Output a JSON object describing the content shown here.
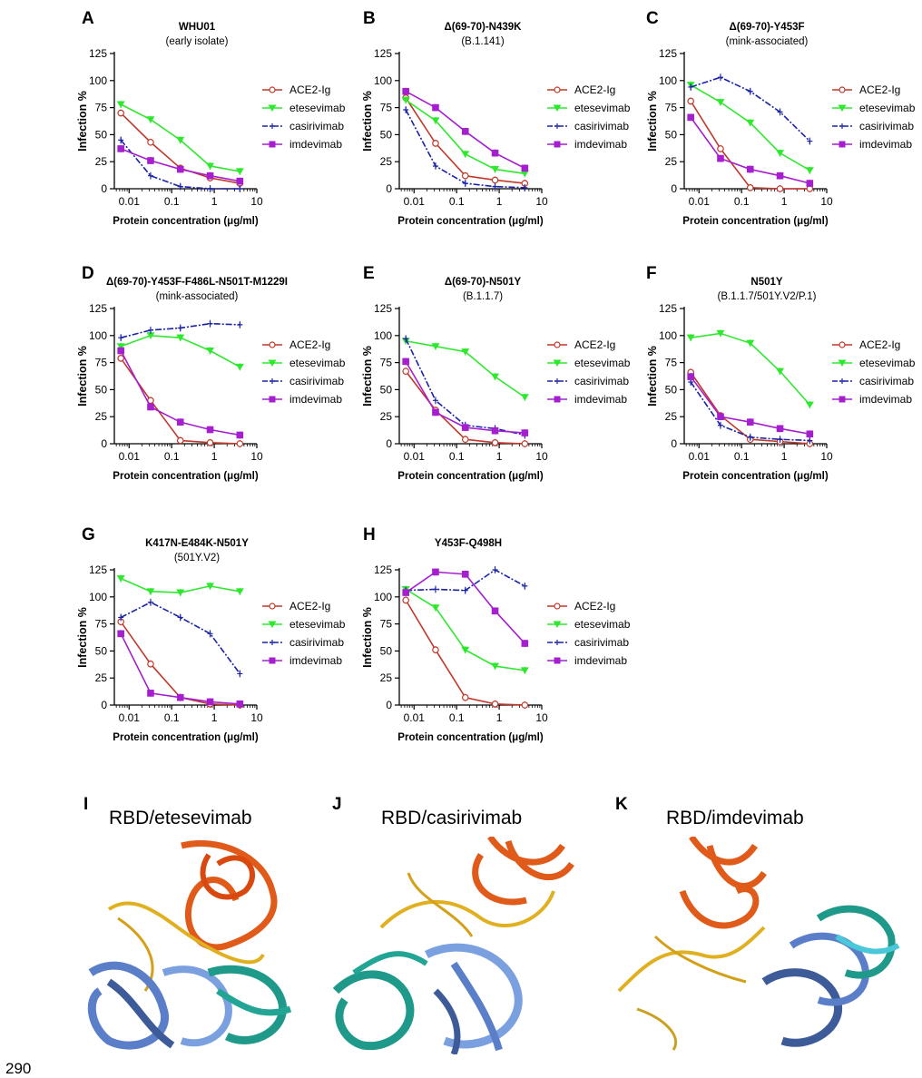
{
  "chart_data": [
    {
      "panel": "A",
      "type": "line",
      "title": "WHU01",
      "subtitle": "(early isolate)",
      "xlabel": "Protein concentration (μg/ml)",
      "ylabel": "Infection %",
      "xscale": "log",
      "xticks": [
        "0.01",
        "0.1",
        "1",
        "10"
      ],
      "yticks": [
        "0",
        "25",
        "50",
        "75",
        "100",
        "125"
      ],
      "ylim": [
        0,
        125
      ],
      "legend": "right",
      "x": [
        0.0064,
        0.032,
        0.16,
        0.8,
        4
      ],
      "series": [
        {
          "name": "ACE2-Ig",
          "values": [
            70,
            43,
            19,
            10,
            5
          ]
        },
        {
          "name": "etesevimab",
          "values": [
            78,
            64,
            45,
            21,
            16
          ]
        },
        {
          "name": "casirivimab",
          "values": [
            45,
            12,
            2,
            0,
            0
          ]
        },
        {
          "name": "imdevimab",
          "values": [
            37,
            26,
            18,
            12,
            7
          ]
        }
      ]
    },
    {
      "panel": "B",
      "type": "line",
      "title": "Δ(69-70)-N439K",
      "subtitle": "(B.1.141)",
      "xlabel": "Protein concentration (μg/ml)",
      "ylabel": "Infection %",
      "xscale": "log",
      "xticks": [
        "0.01",
        "0.1",
        "1",
        "10"
      ],
      "yticks": [
        "0",
        "25",
        "50",
        "75",
        "100",
        "125"
      ],
      "ylim": [
        0,
        125
      ],
      "legend": "right",
      "x": [
        0.0064,
        0.032,
        0.16,
        0.8,
        4
      ],
      "series": [
        {
          "name": "ACE2-Ig",
          "values": [
            84,
            42,
            12,
            8,
            5
          ]
        },
        {
          "name": "etesevimab",
          "values": [
            82,
            63,
            32,
            18,
            14
          ]
        },
        {
          "name": "casirivimab",
          "values": [
            73,
            21,
            5,
            2,
            1
          ]
        },
        {
          "name": "imdevimab",
          "values": [
            90,
            75,
            53,
            33,
            19
          ]
        }
      ]
    },
    {
      "panel": "C",
      "type": "line",
      "title": "Δ(69-70)-Y453F",
      "subtitle": "(mink-associated)",
      "xlabel": "Protein concentration (μg/ml)",
      "ylabel": "Infection %",
      "xscale": "log",
      "xticks": [
        "0.01",
        "0.1",
        "1",
        "10"
      ],
      "yticks": [
        "0",
        "25",
        "50",
        "75",
        "100",
        "125"
      ],
      "ylim": [
        0,
        125
      ],
      "legend": "right",
      "x": [
        0.0064,
        0.032,
        0.16,
        0.8,
        4
      ],
      "series": [
        {
          "name": "ACE2-Ig",
          "values": [
            81,
            37,
            1,
            0,
            0
          ]
        },
        {
          "name": "etesevimab",
          "values": [
            96,
            80,
            61,
            33,
            17
          ]
        },
        {
          "name": "casirivimab",
          "values": [
            94,
            103,
            90,
            71,
            44
          ]
        },
        {
          "name": "imdevimab",
          "values": [
            66,
            28,
            18,
            12,
            5
          ]
        }
      ]
    },
    {
      "panel": "D",
      "type": "line",
      "title": "Δ(69-70)-Y453F-F486L-N501T-M1229I",
      "subtitle": "(mink-associated)",
      "xlabel": "Protein concentration (μg/ml)",
      "ylabel": "Infection %",
      "xscale": "log",
      "xticks": [
        "0.01",
        "0.1",
        "1",
        "10"
      ],
      "yticks": [
        "0",
        "25",
        "50",
        "75",
        "100",
        "125"
      ],
      "ylim": [
        0,
        125
      ],
      "legend": "right",
      "x": [
        0.0064,
        0.032,
        0.16,
        0.8,
        4
      ],
      "series": [
        {
          "name": "ACE2-Ig",
          "values": [
            79,
            40,
            3,
            1,
            0
          ]
        },
        {
          "name": "etesevimab",
          "values": [
            90,
            100,
            98,
            86,
            71
          ]
        },
        {
          "name": "casirivimab",
          "values": [
            98,
            105,
            107,
            111,
            110
          ]
        },
        {
          "name": "imdevimab",
          "values": [
            86,
            34,
            20,
            13,
            8
          ]
        }
      ]
    },
    {
      "panel": "E",
      "type": "line",
      "title": "Δ(69-70)-N501Y",
      "subtitle": "(B.1.1.7)",
      "xlabel": "Protein concentration (μg/ml)",
      "ylabel": "Infection %",
      "xscale": "log",
      "xticks": [
        "0.01",
        "0.1",
        "1",
        "10"
      ],
      "yticks": [
        "0",
        "25",
        "50",
        "75",
        "100",
        "125"
      ],
      "ylim": [
        0,
        125
      ],
      "legend": "right",
      "x": [
        0.0064,
        0.032,
        0.16,
        0.8,
        4
      ],
      "series": [
        {
          "name": "ACE2-Ig",
          "values": [
            67,
            31,
            4,
            1,
            0
          ]
        },
        {
          "name": "etesevimab",
          "values": [
            95,
            90,
            85,
            62,
            43
          ]
        },
        {
          "name": "casirivimab",
          "values": [
            97,
            40,
            17,
            14,
            8
          ]
        },
        {
          "name": "imdevimab",
          "values": [
            76,
            29,
            15,
            12,
            10
          ]
        }
      ]
    },
    {
      "panel": "F",
      "type": "line",
      "title": "N501Y",
      "subtitle": "(B.1.1.7/501Y.V2/P.1)",
      "xlabel": "Protein concentration (μg/ml)",
      "ylabel": "Infection %",
      "xscale": "log",
      "xticks": [
        "0.01",
        "0.1",
        "1",
        "10"
      ],
      "yticks": [
        "0",
        "25",
        "50",
        "75",
        "100",
        "125"
      ],
      "ylim": [
        0,
        125
      ],
      "legend": "right",
      "x": [
        0.0064,
        0.032,
        0.16,
        0.8,
        4
      ],
      "series": [
        {
          "name": "ACE2-Ig",
          "values": [
            66,
            26,
            4,
            2,
            0
          ]
        },
        {
          "name": "etesevimab",
          "values": [
            98,
            102,
            93,
            67,
            36
          ]
        },
        {
          "name": "casirivimab",
          "values": [
            57,
            17,
            6,
            4,
            3
          ]
        },
        {
          "name": "imdevimab",
          "values": [
            62,
            25,
            20,
            14,
            9
          ]
        }
      ]
    },
    {
      "panel": "G",
      "type": "line",
      "title": "K417N-E484K-N501Y",
      "subtitle": "(501Y.V2)",
      "xlabel": "Protein concentration (μg/ml)",
      "ylabel": "Infection %",
      "xscale": "log",
      "xticks": [
        "0.01",
        "0.1",
        "1",
        "10"
      ],
      "yticks": [
        "0",
        "25",
        "50",
        "75",
        "100",
        "125"
      ],
      "ylim": [
        0,
        125
      ],
      "legend": "right",
      "x": [
        0.0064,
        0.032,
        0.16,
        0.8,
        4
      ],
      "series": [
        {
          "name": "ACE2-Ig",
          "values": [
            77,
            38,
            7,
            1,
            0
          ]
        },
        {
          "name": "etesevimab",
          "values": [
            117,
            105,
            104,
            110,
            105
          ]
        },
        {
          "name": "casirivimab",
          "values": [
            81,
            95,
            81,
            66,
            29
          ]
        },
        {
          "name": "imdevimab",
          "values": [
            66,
            11,
            7,
            3,
            1
          ]
        }
      ]
    },
    {
      "panel": "H",
      "type": "line",
      "title": "Y453F-Q498H",
      "subtitle": "",
      "xlabel": "Protein concentration (μg/ml)",
      "ylabel": "Infection %",
      "xscale": "log",
      "xticks": [
        "0.01",
        "0.1",
        "1",
        "10"
      ],
      "yticks": [
        "0",
        "25",
        "50",
        "75",
        "100",
        "125"
      ],
      "ylim": [
        0,
        125
      ],
      "legend": "right",
      "x": [
        0.0064,
        0.032,
        0.16,
        0.8,
        4
      ],
      "series": [
        {
          "name": "ACE2-Ig",
          "values": [
            97,
            51,
            7,
            1,
            0
          ]
        },
        {
          "name": "etesevimab",
          "values": [
            107,
            90,
            51,
            36,
            32
          ]
        },
        {
          "name": "casirivimab",
          "values": [
            106,
            107,
            106,
            125,
            110
          ]
        },
        {
          "name": "imdevimab",
          "values": [
            104,
            123,
            121,
            87,
            57
          ]
        }
      ]
    }
  ],
  "series_style": [
    {
      "name": "ACE2-Ig",
      "color": "#c0392b",
      "marker": "circle-open"
    },
    {
      "name": "etesevimab",
      "color": "#2ee82e",
      "marker": "triangle-down"
    },
    {
      "name": "casirivimab",
      "color": "#1a22a8",
      "marker": "cross",
      "dash": "dashdot"
    },
    {
      "name": "imdevimab",
      "color": "#a51fcf",
      "marker": "square"
    }
  ],
  "structures": [
    {
      "letter": "I",
      "title": "RBD/etesevimab"
    },
    {
      "letter": "J",
      "title": "RBD/casirivimab"
    },
    {
      "letter": "K",
      "title": "RBD/imdevimab"
    }
  ],
  "page_number": "290"
}
